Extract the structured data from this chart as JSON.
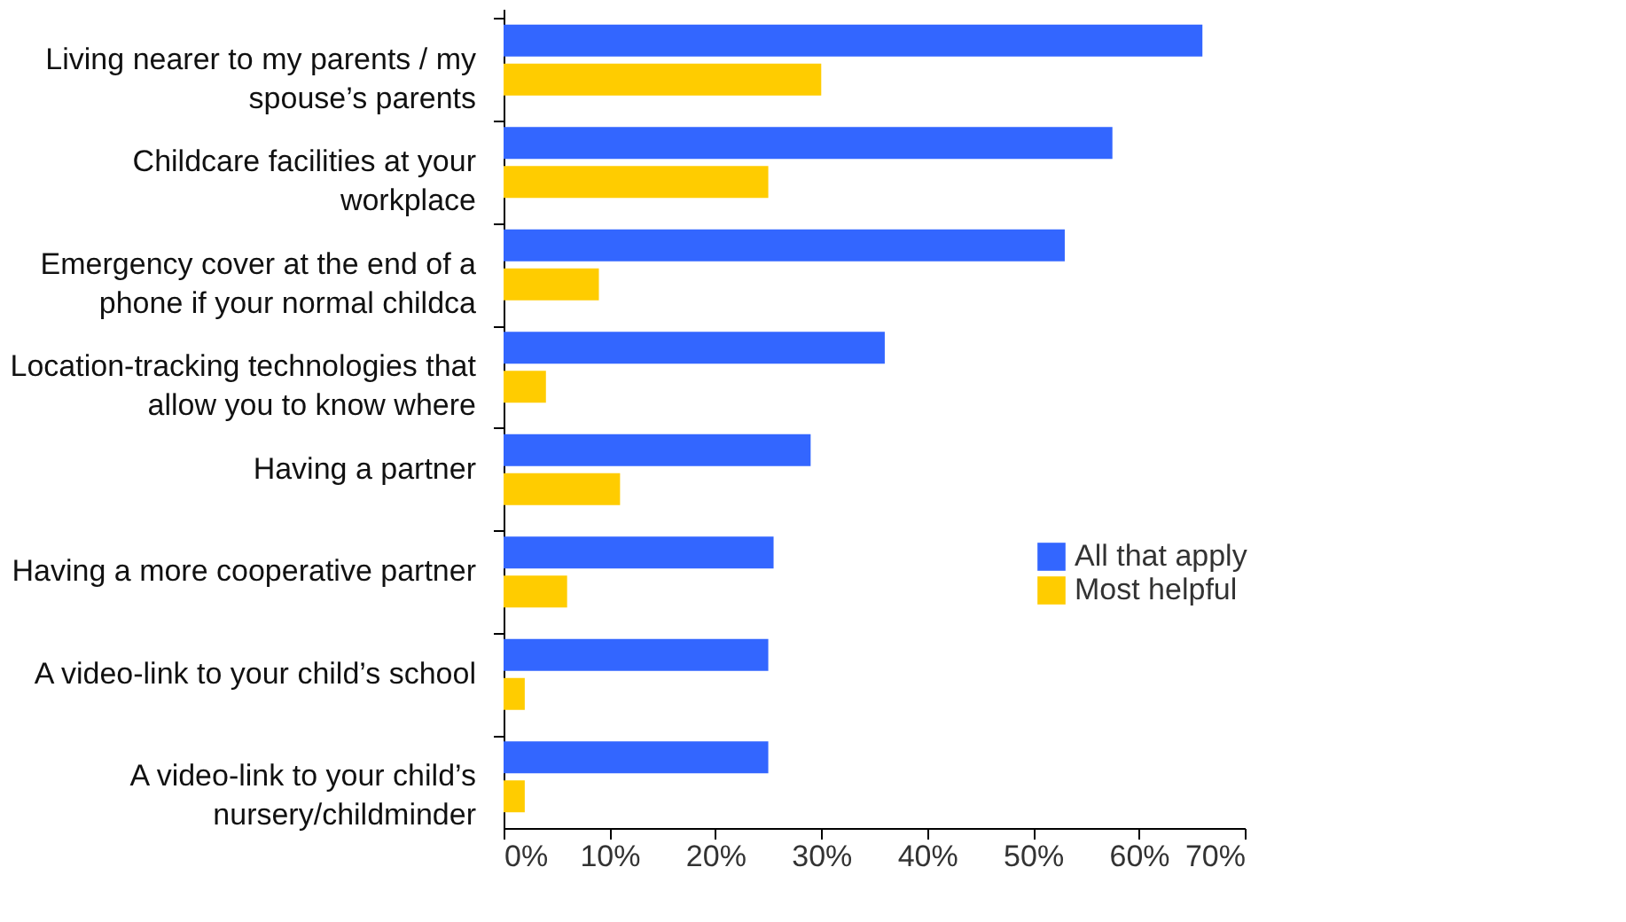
{
  "chart_data": {
    "type": "bar",
    "orientation": "horizontal",
    "categories": [
      "Living nearer to my parents / my spouse’s parents",
      "Childcare facilities at your workplace",
      "Emergency cover at the end of a phone if your normal childca",
      "Location-tracking technologies that allow you to know where",
      "Having a partner",
      "Having a more cooperative partner",
      "A video-link to your child’s school",
      "A video-link to your child’s nursery/childminder"
    ],
    "series": [
      {
        "name": "All that apply",
        "color": "#3366ff",
        "values": [
          66,
          57.5,
          53,
          36,
          29,
          25.5,
          25,
          25
        ]
      },
      {
        "name": "Most helpful",
        "color": "#ffcc00",
        "values": [
          30,
          25,
          9,
          4,
          11,
          6,
          2,
          2
        ]
      }
    ],
    "xlim": [
      0,
      70
    ],
    "xticks": [
      {
        "value": 0,
        "label": "0%"
      },
      {
        "value": 10,
        "label": "10%"
      },
      {
        "value": 20,
        "label": "20%"
      },
      {
        "value": 30,
        "label": "30%"
      },
      {
        "value": 40,
        "label": "40%"
      },
      {
        "value": 50,
        "label": "50%"
      },
      {
        "value": 60,
        "label": "60%"
      },
      {
        "value": 70,
        "label": "70%"
      }
    ],
    "grid": false,
    "legend": "right"
  }
}
